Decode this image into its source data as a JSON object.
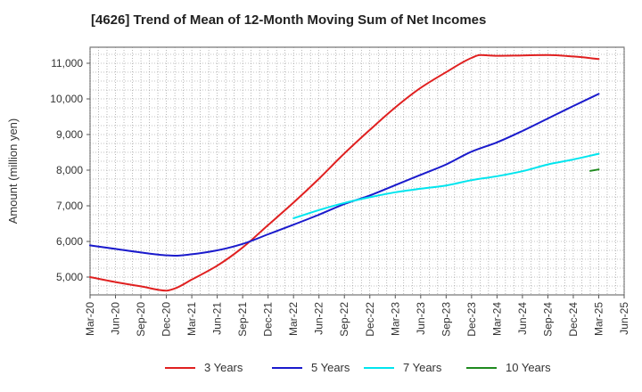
{
  "title": "[4626]  Trend of Mean of 12-Month Moving Sum of Net Incomes",
  "chart_data": {
    "type": "line",
    "title": "[4626]  Trend of Mean of 12-Month Moving Sum of Net Incomes",
    "xlabel": "",
    "ylabel": "Amount (million yen)",
    "ylim": [
      4500,
      11450
    ],
    "yticks": [
      5000,
      6000,
      7000,
      8000,
      9000,
      10000,
      11000
    ],
    "ytick_labels": [
      "5,000",
      "6,000",
      "7,000",
      "8,000",
      "9,000",
      "10,000",
      "11,000"
    ],
    "xtick_labels": [
      "Mar-20",
      "Jun-20",
      "Sep-20",
      "Dec-20",
      "Mar-21",
      "Jun-21",
      "Sep-21",
      "Dec-21",
      "Mar-22",
      "Jun-22",
      "Sep-22",
      "Dec-22",
      "Mar-23",
      "Jun-23",
      "Sep-23",
      "Dec-23",
      "Mar-24",
      "Jun-24",
      "Sep-24",
      "Dec-24",
      "Mar-25",
      "Jun-25"
    ],
    "grid": true,
    "legend_position": "bottom",
    "series": [
      {
        "name": "3 Years",
        "color": "#e02020",
        "x": [
          "Mar-20",
          "Jun-20",
          "Sep-20",
          "Dec-20",
          "Jan-21",
          "Mar-21",
          "Jun-21",
          "Sep-21",
          "Dec-21",
          "Mar-22",
          "Jun-22",
          "Sep-22",
          "Dec-22",
          "Mar-23",
          "Jun-23",
          "Sep-23",
          "Dec-23",
          "Jan-24",
          "Mar-24",
          "Jun-24",
          "Sep-24",
          "Dec-24",
          "Mar-25"
        ],
        "y": [
          5000,
          4860,
          4740,
          4620,
          4680,
          4930,
          5320,
          5830,
          6460,
          7090,
          7760,
          8470,
          9130,
          9760,
          10310,
          10750,
          11150,
          11230,
          11210,
          11220,
          11230,
          11190,
          11120
        ]
      },
      {
        "name": "5 Years",
        "color": "#1a1acc",
        "x": [
          "Mar-20",
          "Jun-20",
          "Sep-20",
          "Dec-20",
          "Jan-21",
          "Mar-21",
          "Jun-21",
          "Sep-21",
          "Dec-21",
          "Mar-22",
          "Jun-22",
          "Sep-22",
          "Dec-22",
          "Mar-23",
          "Jun-23",
          "Sep-23",
          "Dec-23",
          "Mar-24",
          "Jun-24",
          "Sep-24",
          "Dec-24",
          "Mar-25"
        ],
        "y": [
          5890,
          5790,
          5690,
          5610,
          5600,
          5640,
          5750,
          5930,
          6200,
          6470,
          6750,
          7050,
          7290,
          7580,
          7870,
          8160,
          8520,
          8780,
          9100,
          9450,
          9800,
          10140
        ]
      },
      {
        "name": "7 Years",
        "color": "#00e5ee",
        "x": [
          "Mar-22",
          "Jun-22",
          "Sep-22",
          "Dec-22",
          "Mar-23",
          "Jun-23",
          "Sep-23",
          "Dec-23",
          "Mar-24",
          "Jun-24",
          "Sep-24",
          "Dec-24",
          "Mar-25"
        ],
        "y": [
          6650,
          6880,
          7080,
          7240,
          7380,
          7480,
          7570,
          7720,
          7830,
          7970,
          8160,
          8300,
          8460
        ]
      },
      {
        "name": "10 Years",
        "color": "#1e8a1e",
        "x": [
          "Feb-25",
          "Mar-25"
        ],
        "y": [
          7980,
          8020
        ]
      }
    ]
  }
}
